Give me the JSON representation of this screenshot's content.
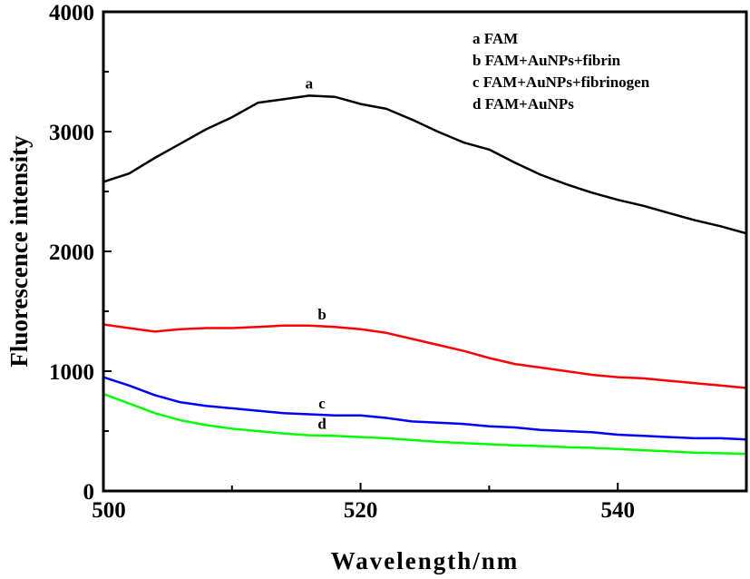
{
  "chart_data": {
    "type": "line",
    "title": "",
    "xlabel": "Wavelength/nm",
    "ylabel": "Fluorescence intensity",
    "xlim": [
      500,
      550
    ],
    "ylim": [
      0,
      4000
    ],
    "x_ticks": [
      500,
      520,
      540
    ],
    "x_minor_ticks": [
      510,
      530
    ],
    "y_ticks": [
      0,
      1000,
      2000,
      3000,
      4000
    ],
    "y_minor_ticks": [
      500,
      1500,
      2500,
      3500
    ],
    "grid": false,
    "legend_position": "top-right",
    "legend": [
      "a  FAM",
      "b FAM+AuNPs+fibrin",
      "c FAM+AuNPs+fibrinogen",
      "d FAM+AuNPs"
    ],
    "x": [
      500,
      502,
      504,
      506,
      508,
      510,
      512,
      514,
      516,
      518,
      520,
      522,
      524,
      526,
      528,
      530,
      532,
      534,
      536,
      538,
      540,
      542,
      544,
      546,
      548,
      550
    ],
    "series": [
      {
        "name": "a",
        "label": "a",
        "color": "#000000",
        "label_at": 516,
        "values": [
          2580,
          2650,
          2780,
          2900,
          3020,
          3120,
          3240,
          3270,
          3300,
          3290,
          3230,
          3190,
          3100,
          3000,
          2910,
          2850,
          2740,
          2640,
          2560,
          2490,
          2430,
          2380,
          2320,
          2260,
          2210,
          2150
        ]
      },
      {
        "name": "b",
        "label": "b",
        "color": "#ff0000",
        "label_at": 517,
        "values": [
          1390,
          1360,
          1330,
          1350,
          1360,
          1360,
          1370,
          1380,
          1380,
          1370,
          1350,
          1320,
          1270,
          1220,
          1170,
          1110,
          1060,
          1030,
          1000,
          970,
          950,
          940,
          920,
          900,
          880,
          860
        ]
      },
      {
        "name": "c",
        "label": "c",
        "color": "#0000ff",
        "label_at": 517,
        "values": [
          950,
          880,
          800,
          740,
          710,
          690,
          670,
          650,
          640,
          630,
          630,
          610,
          580,
          570,
          560,
          540,
          530,
          510,
          500,
          490,
          470,
          460,
          450,
          440,
          440,
          430
        ]
      },
      {
        "name": "d",
        "label": "d",
        "color": "#00ff00",
        "label_at": 517,
        "values": [
          810,
          730,
          650,
          590,
          550,
          520,
          500,
          480,
          465,
          460,
          450,
          440,
          425,
          410,
          400,
          390,
          380,
          375,
          365,
          360,
          350,
          340,
          330,
          320,
          315,
          310
        ]
      }
    ]
  }
}
